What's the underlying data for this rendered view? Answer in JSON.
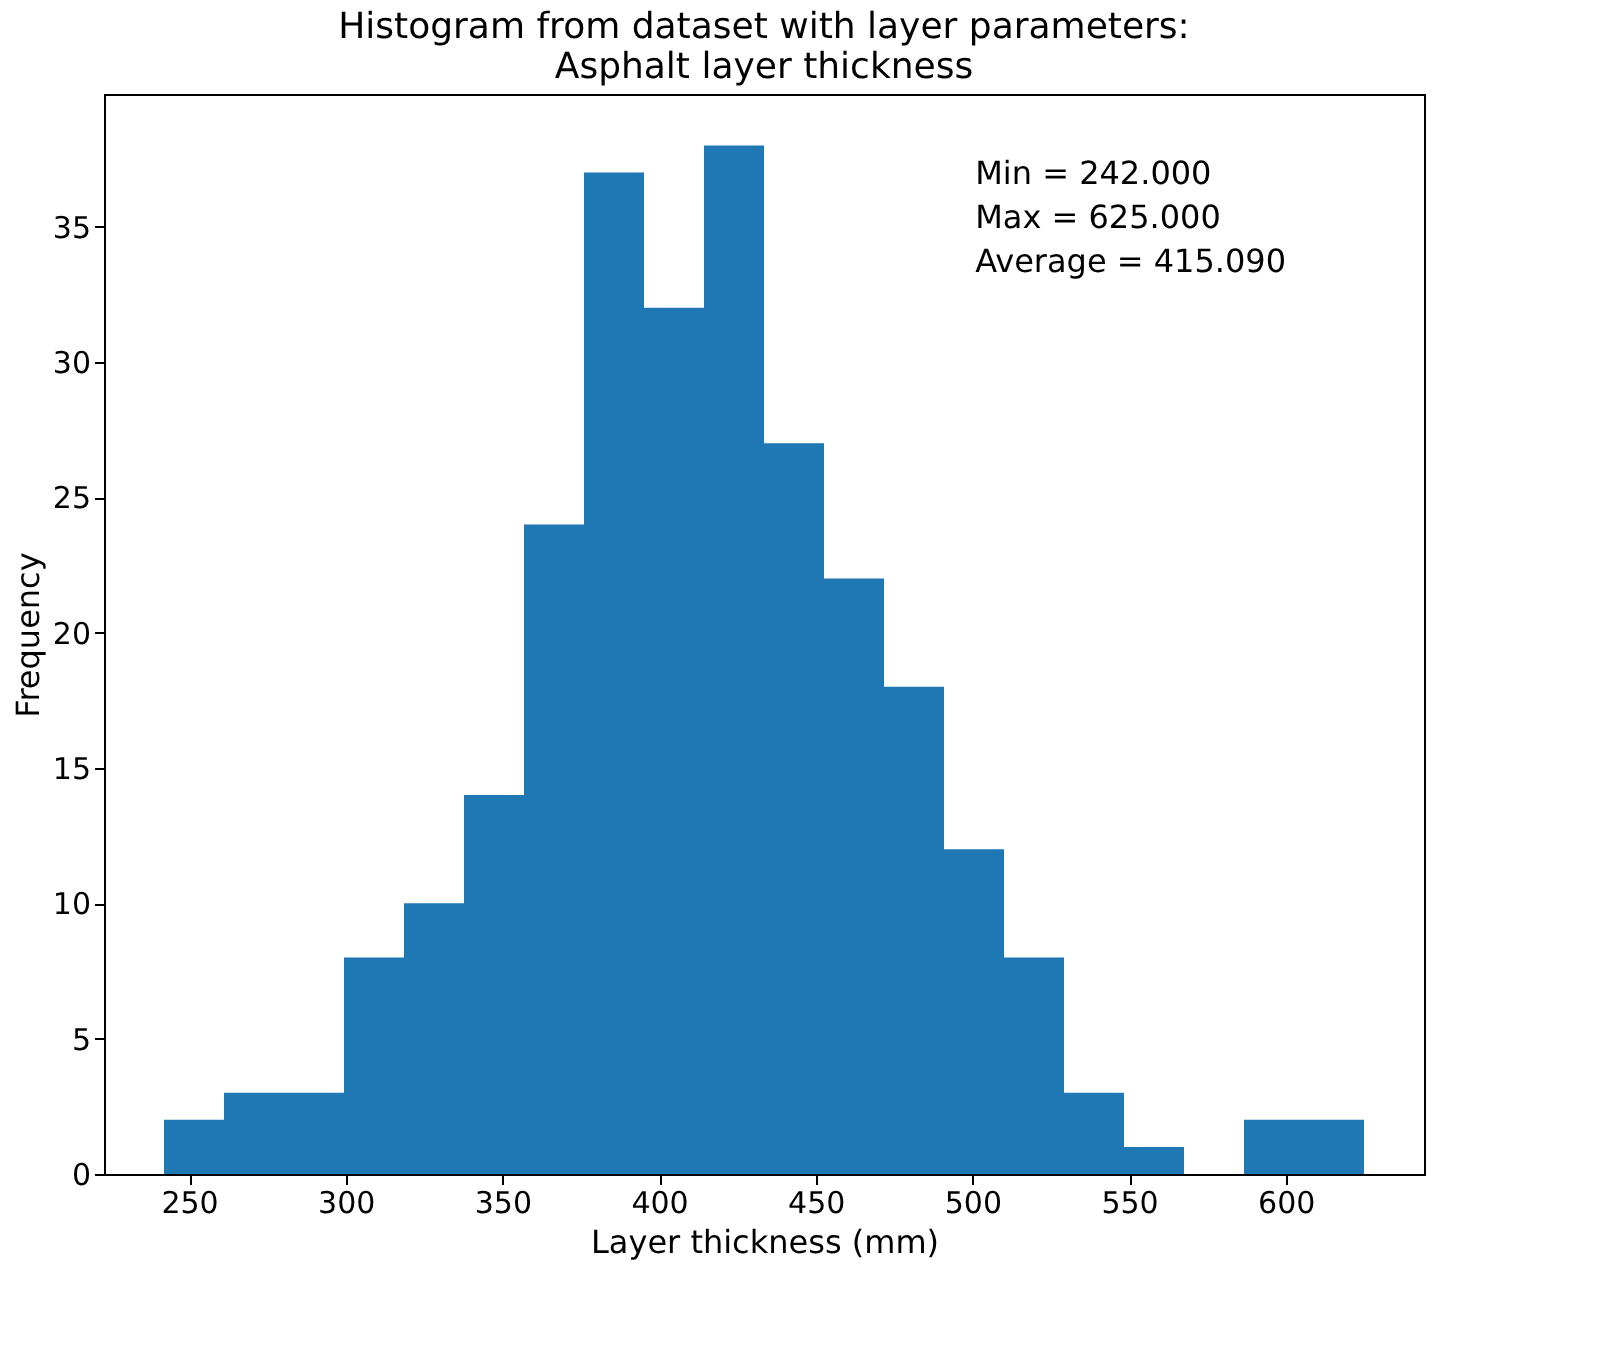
{
  "chart_data": {
    "type": "histogram",
    "title": "Histogram from dataset with layer parameters:\nAsphalt layer thickness",
    "xlabel": "Layer thickness (mm)",
    "ylabel": "Frequency",
    "bins": [
      242,
      261.15,
      280.3,
      299.45,
      318.6,
      337.75,
      356.9,
      376.05,
      395.2,
      414.35,
      433.5,
      452.65,
      471.8,
      490.95,
      510.1,
      529.25,
      548.4,
      567.55,
      586.7,
      605.85,
      625
    ],
    "values": [
      2,
      3,
      3,
      8,
      10,
      14,
      24,
      37,
      32,
      38,
      27,
      22,
      18,
      12,
      8,
      3,
      1,
      0,
      2,
      2
    ],
    "color": "#1f77b4",
    "xlim": [
      222.85,
      644.15
    ],
    "ylim": [
      0,
      39.9
    ],
    "xticks": [
      250,
      300,
      350,
      400,
      450,
      500,
      550,
      600
    ],
    "yticks": [
      0,
      5,
      10,
      15,
      20,
      25,
      30,
      35
    ],
    "annotations": [
      "Min = 242.000",
      "Max = 625.000",
      "Average = 415.090"
    ],
    "grid": false
  }
}
